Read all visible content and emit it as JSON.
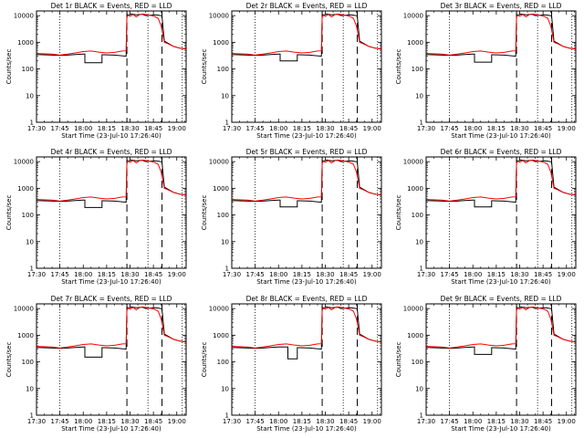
{
  "chart_data": {
    "type": "line",
    "layout": "3x3 grid",
    "xlabel": "Start Time (23-Jul-10 17:26:40)",
    "ylabel": "Counts/sec",
    "x_tick_labels": [
      "17:30",
      "17:45",
      "18:00",
      "18:15",
      "18:30",
      "18:45",
      "19:00"
    ],
    "x_tick_minutes": [
      30,
      45,
      60,
      75,
      90,
      105,
      120
    ],
    "xlim_minutes": [
      30,
      126
    ],
    "y_scale": "log",
    "ylim": [
      1,
      15000
    ],
    "y_tick_labels": [
      "1",
      "10",
      "100",
      "1000",
      "10000"
    ],
    "y_tick_values": [
      1,
      10,
      100,
      1000,
      10000
    ],
    "colors": {
      "events": "#000000",
      "lld": "#ff0000"
    },
    "panels": [
      {
        "title": "Det 1r  BLACK = Events, RED = LLD",
        "dotted_x": [
          45,
          101.5,
          123.5
        ],
        "dashed_x": [
          88,
          110.5
        ],
        "dip_level": 170,
        "dip_range": [
          61,
          72
        ]
      },
      {
        "title": "Det 2r  BLACK = Events, RED = LLD",
        "dotted_x": [
          45,
          101.5,
          123.5
        ],
        "dashed_x": [
          88,
          110.5
        ],
        "dip_level": 200,
        "dip_range": [
          61,
          72
        ]
      },
      {
        "title": "Det 3r  BLACK = Events, RED = LLD",
        "dotted_x": [
          45,
          101.5,
          123.5
        ],
        "dashed_x": [
          88,
          110.5
        ],
        "dip_level": 180,
        "dip_range": [
          61,
          72
        ]
      },
      {
        "title": "Det 4r  BLACK = Events, RED = LLD",
        "dotted_x": [
          45,
          101.5,
          123.5
        ],
        "dashed_x": [
          88,
          110.5
        ],
        "dip_level": 190,
        "dip_range": [
          61,
          72
        ]
      },
      {
        "title": "Det 5r  BLACK = Events, RED = LLD",
        "dotted_x": [
          45,
          101.5,
          123.5
        ],
        "dashed_x": [
          88,
          110.5
        ],
        "dip_level": 200,
        "dip_range": [
          61,
          72
        ]
      },
      {
        "title": "Det 6r  BLACK = Events, RED = LLD",
        "dotted_x": [
          45,
          101.5,
          123.5
        ],
        "dashed_x": [
          88,
          110.5
        ],
        "dip_level": 200,
        "dip_range": [
          61,
          72
        ]
      },
      {
        "title": "Det 7r  BLACK = Events, RED = LLD",
        "dotted_x": [
          45,
          101.5,
          123.5
        ],
        "dashed_x": [
          88,
          110.5
        ],
        "dip_level": 150,
        "dip_range": [
          61,
          72
        ]
      },
      {
        "title": "Det 8r  BLACK = Events, RED = LLD",
        "dotted_x": [
          45,
          101.5,
          123.5
        ],
        "dashed_x": [
          88,
          110.5
        ],
        "dip_level": 130,
        "dip_range": [
          66,
          72
        ]
      },
      {
        "title": "Det 9r  BLACK = Events, RED = LLD",
        "dotted_x": [
          45,
          101.5,
          123.5
        ],
        "dashed_x": [
          88,
          110.5
        ],
        "dip_level": 190,
        "dip_range": [
          61,
          72
        ]
      }
    ],
    "events_series_template": {
      "name": "Events",
      "x": [
        30,
        40,
        45,
        50,
        55,
        60,
        61,
        72,
        73,
        80,
        87.5,
        88,
        89,
        91,
        94,
        96,
        98,
        100,
        104,
        106,
        108,
        110.5,
        112,
        118,
        122,
        126
      ],
      "y": [
        350,
        330,
        320,
        330,
        350,
        360,
        "dip",
        "dip",
        340,
        330,
        300,
        11000,
        10500,
        11500,
        10800,
        11000,
        11200,
        10000,
        10500,
        10800,
        10400,
        9800,
        1100,
        700,
        600,
        560
      ]
    },
    "lld_series_template": {
      "name": "LLD",
      "x": [
        30,
        40,
        45,
        50,
        55,
        60,
        65,
        70,
        75,
        80,
        85,
        87.5,
        88,
        89,
        90,
        92,
        94,
        96,
        98,
        100,
        102,
        104,
        106,
        108,
        110,
        112,
        114,
        118,
        122,
        126
      ],
      "y": [
        380,
        360,
        330,
        360,
        400,
        450,
        470,
        430,
        400,
        420,
        470,
        480,
        9000,
        10500,
        9500,
        11000,
        9000,
        10800,
        11500,
        11000,
        10500,
        10000,
        9200,
        8000,
        4000,
        1000,
        900,
        700,
        600,
        550
      ]
    }
  }
}
